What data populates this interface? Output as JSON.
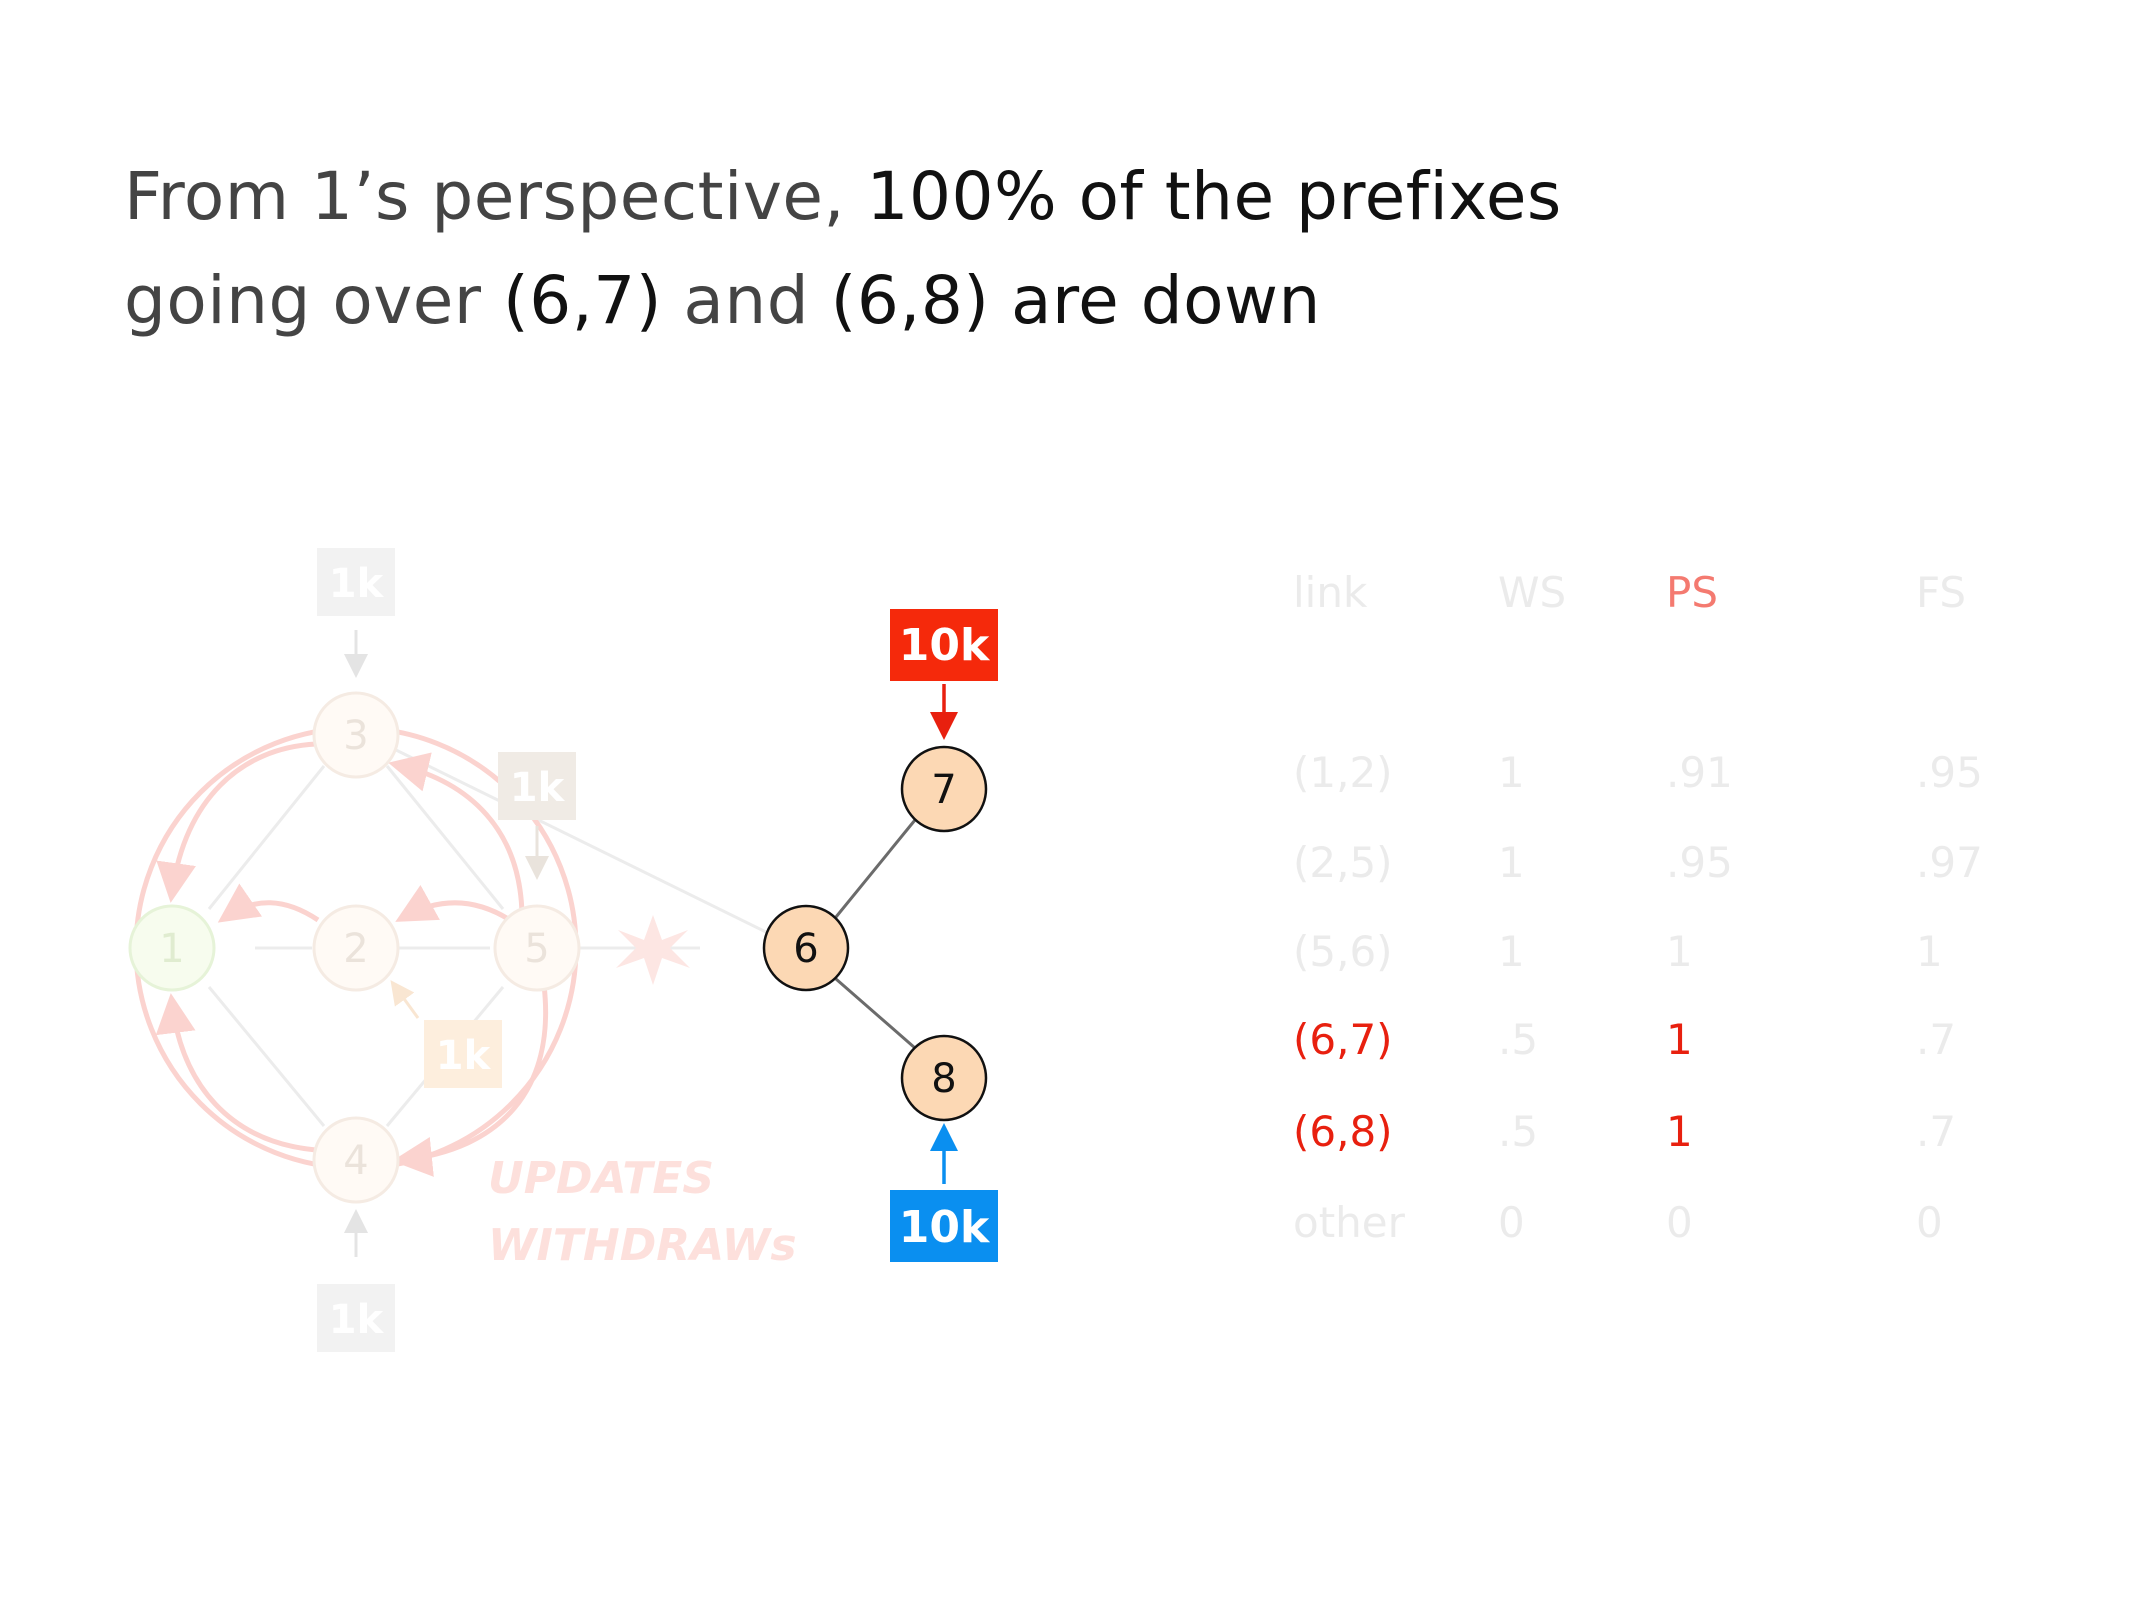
{
  "title": {
    "line1": {
      "a": "From 1’s perspective, ",
      "b": "100% of the prefixes"
    },
    "line2": {
      "a": "going over ",
      "b": "(6,7)",
      "c": " and ",
      "d": "(6,8)",
      "e": " are down"
    }
  },
  "diagram": {
    "nodes": {
      "n1": "1",
      "n2": "2",
      "n3": "3",
      "n4": "4",
      "n5": "5",
      "n6": "6",
      "n7": "7",
      "n8": "8"
    },
    "sources": {
      "top_left": "1k",
      "mid_right": "1k",
      "lower_mid": "1k",
      "bottom_left": "1k",
      "red_top": "10k",
      "blue_bottom": "10k"
    },
    "legend": {
      "updates": "UPDATES",
      "withdraws": "WITHDRAWs"
    }
  },
  "table": {
    "headers": {
      "link": "link",
      "ws": "WS",
      "ps": "PS",
      "fs": "FS"
    },
    "rows": [
      {
        "link": "(1,2)",
        "ws": "1",
        "ps": ".91",
        "fs": ".95"
      },
      {
        "link": "(2,5)",
        "ws": "1",
        "ps": ".95",
        "fs": ".97"
      },
      {
        "link": "(5,6)",
        "ws": "1",
        "ps": "1",
        "fs": "1"
      },
      {
        "link": "(6,7)",
        "ws": ".5",
        "ps": "1",
        "fs": ".7"
      },
      {
        "link": "(6,8)",
        "ws": ".5",
        "ps": "1",
        "fs": ".7"
      },
      {
        "link": "other",
        "ws": "0",
        "ps": "0",
        "fs": "0"
      }
    ]
  },
  "colors": {
    "red_source": "#f5290b",
    "blue_source": "#0a8ff0",
    "node_fill": "#fcd8b4",
    "faded_text": "#ebebeb"
  }
}
